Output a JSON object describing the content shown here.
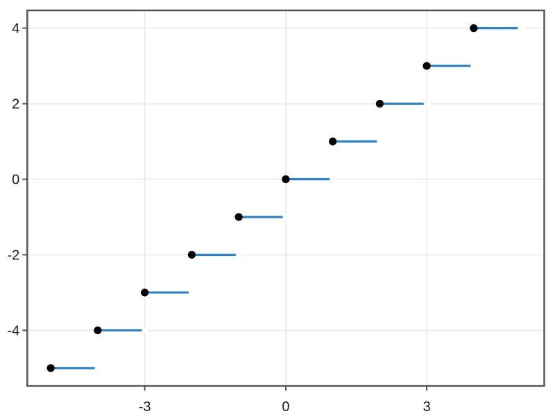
{
  "figure": {
    "background": "#ffffff"
  },
  "chart_data": {
    "type": "line",
    "subtype": "step-function",
    "function": "floor(x)",
    "title": "",
    "xlabel": "",
    "ylabel": "",
    "legend": null,
    "grid": true,
    "xlim": [
      -5.5,
      5.5
    ],
    "ylim": [
      -5.47,
      4.47
    ],
    "x_ticks": [
      -3,
      0,
      3
    ],
    "y_ticks": [
      4,
      2,
      0,
      -2,
      -4
    ],
    "steps": [
      {
        "x_start": -5,
        "x_end": -4,
        "y": -5
      },
      {
        "x_start": -4,
        "x_end": -3,
        "y": -4
      },
      {
        "x_start": -3,
        "x_end": -2,
        "y": -3
      },
      {
        "x_start": -2,
        "x_end": -1,
        "y": -2
      },
      {
        "x_start": -1,
        "x_end": 0,
        "y": -1
      },
      {
        "x_start": 0,
        "x_end": 1,
        "y": 0
      },
      {
        "x_start": 1,
        "x_end": 2,
        "y": 1
      },
      {
        "x_start": 2,
        "x_end": 3,
        "y": 2
      },
      {
        "x_start": 3,
        "x_end": 4,
        "y": 3
      },
      {
        "x_start": 4,
        "x_end": 5,
        "y": 4
      }
    ],
    "marker_closed_end": "left",
    "marker_open_end": "right",
    "colors": {
      "line": "#2e82c3",
      "closed_marker": "#000000",
      "open_marker": "#ffffff",
      "frame": "#555555",
      "grid": "#ebebeb",
      "tick": "#555555",
      "tick_label": "#1c1c1c"
    }
  }
}
